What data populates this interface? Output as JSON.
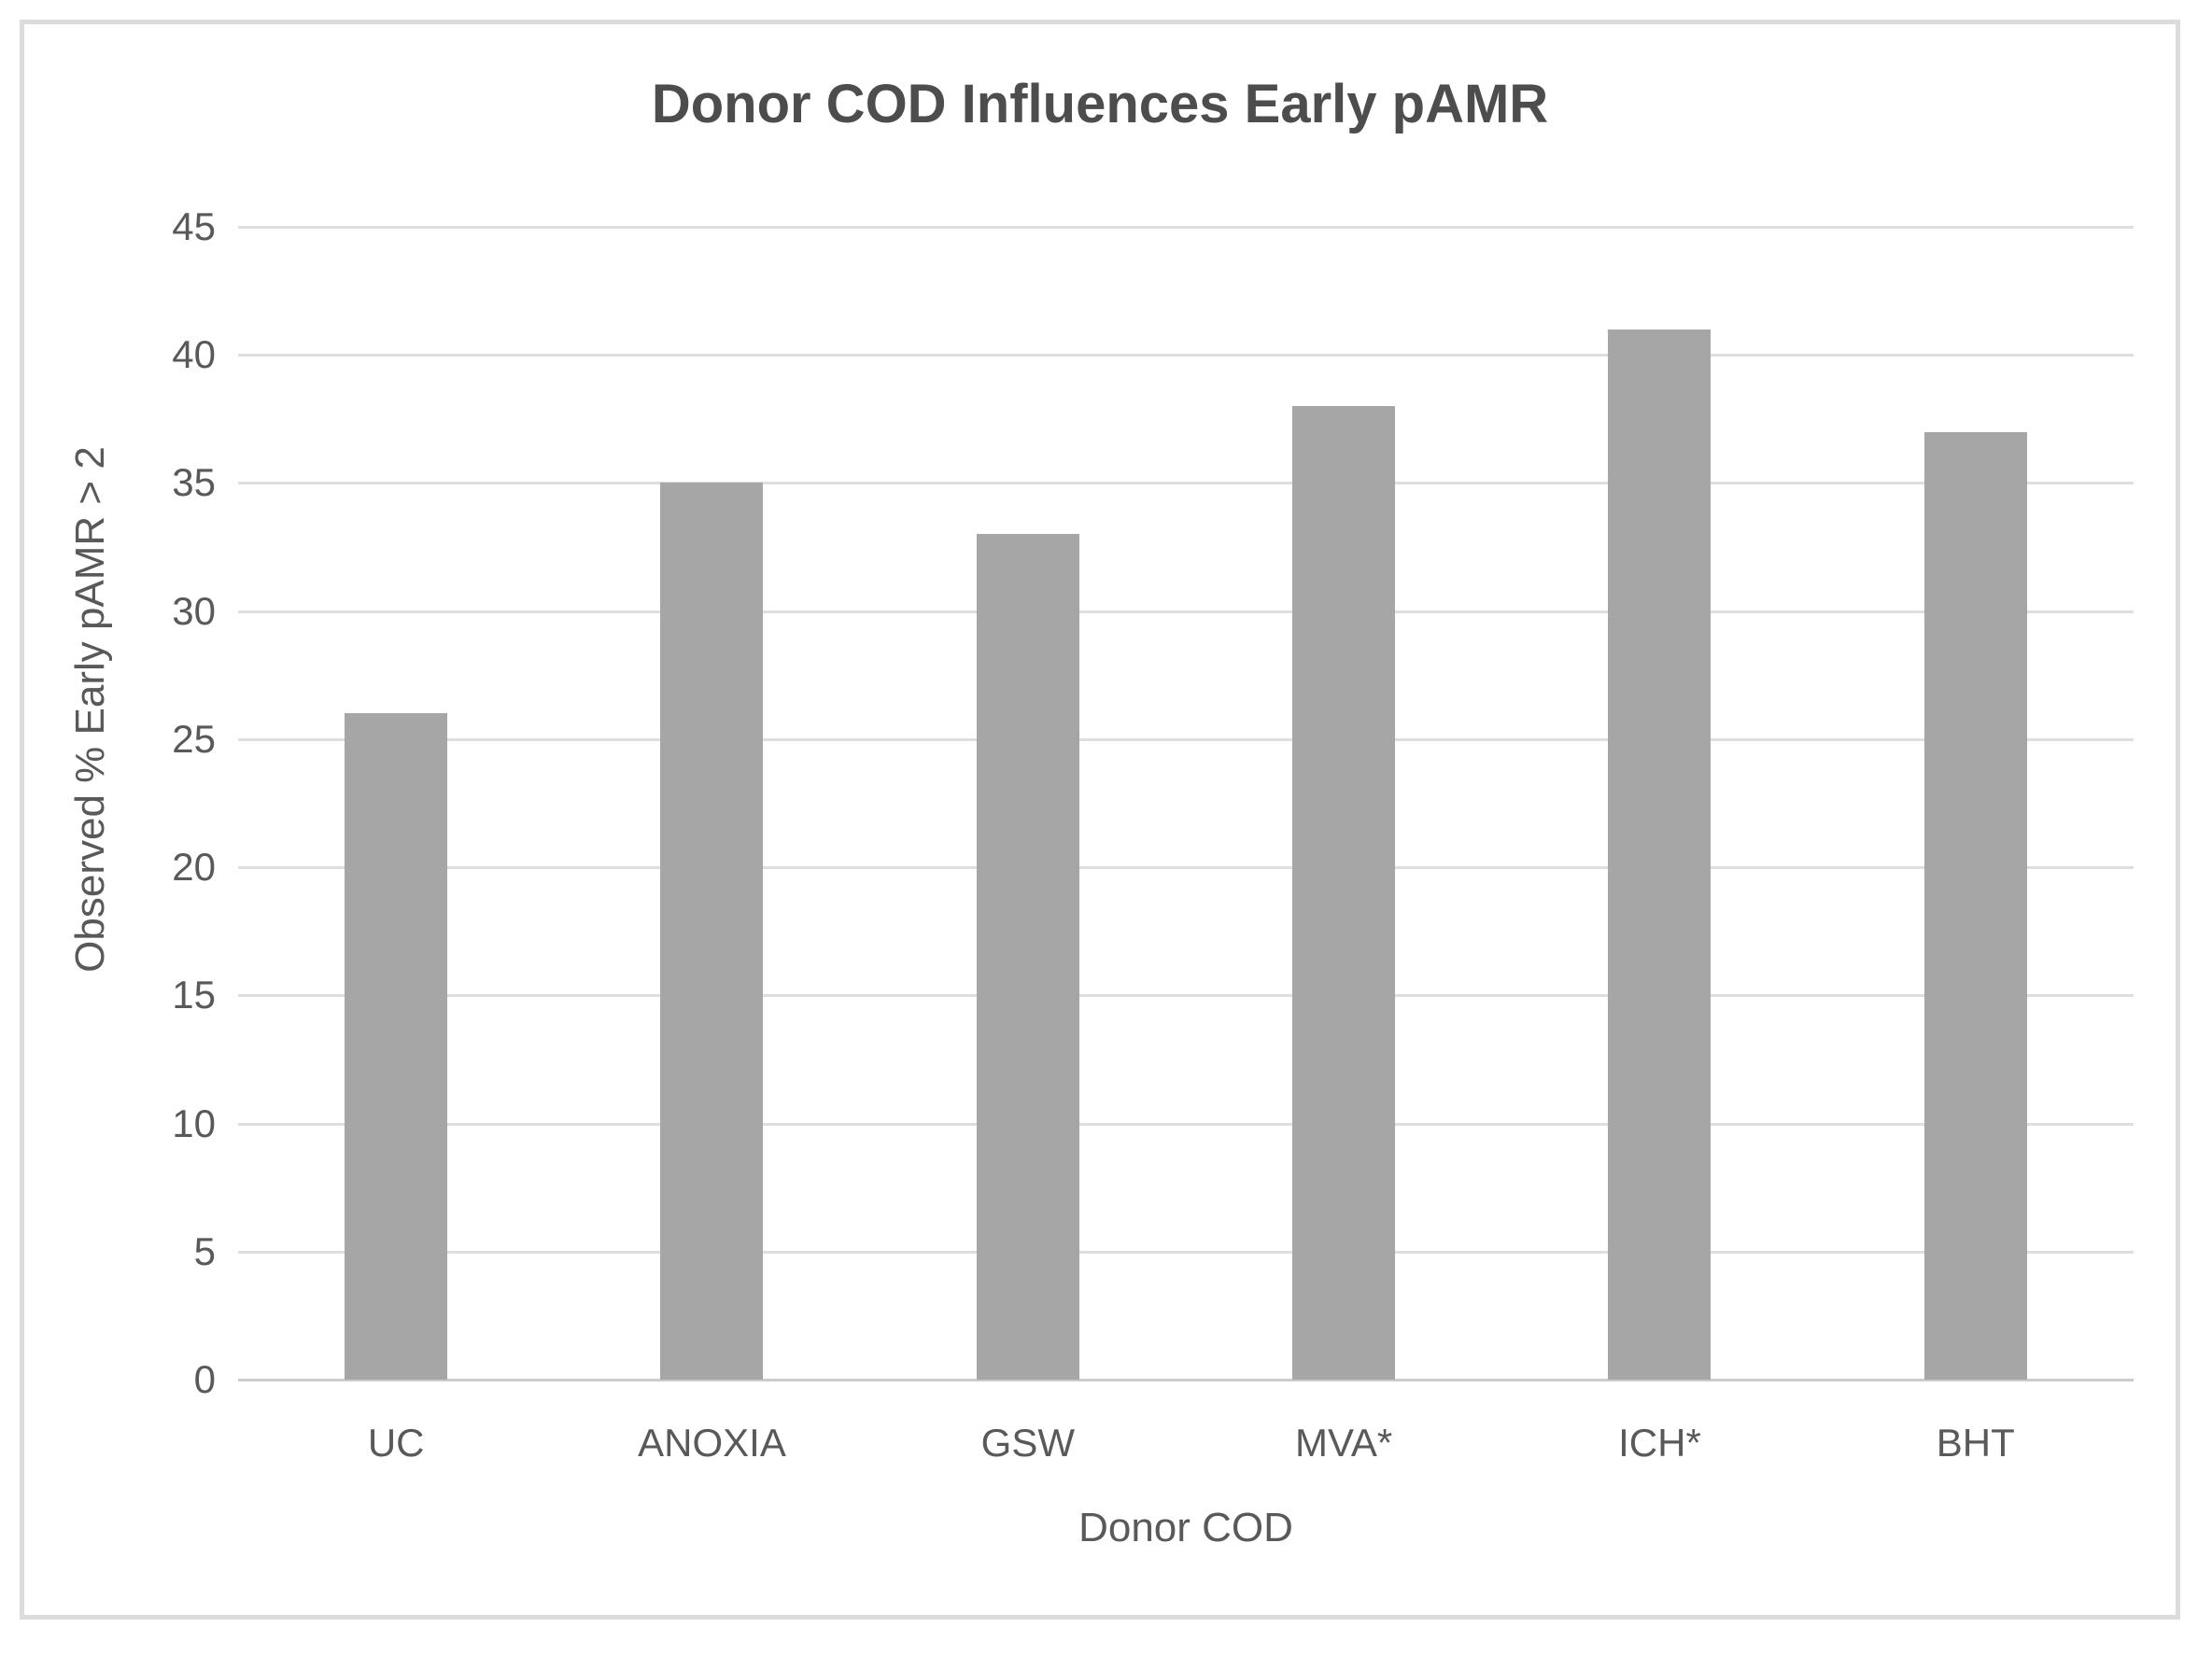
{
  "chart_data": {
    "type": "bar",
    "title": "Donor COD Influences Early pAMR",
    "categories": [
      "UC",
      "ANOXIA",
      "GSW",
      "MVA*",
      "ICH*",
      "BHT"
    ],
    "values": [
      26,
      35,
      33,
      38,
      41,
      37
    ],
    "xlabel": "Donor COD",
    "ylabel": "Observed % Early pAMR > 2",
    "ylim": [
      0,
      45
    ],
    "ytick_step": 5,
    "ytick_labels": [
      "0",
      "5",
      "10",
      "15",
      "20",
      "25",
      "30",
      "35",
      "40",
      "45"
    ],
    "grid": true,
    "legend_position": "none",
    "bar_color": "#a6a6a6",
    "gridline_color": "#dedede",
    "axis_line_color": "#cccccc",
    "text_color": "#595959",
    "title_color": "#4d4d4d",
    "frame_border_color": "#dcdcdc",
    "background_color": "#ffffff"
  }
}
